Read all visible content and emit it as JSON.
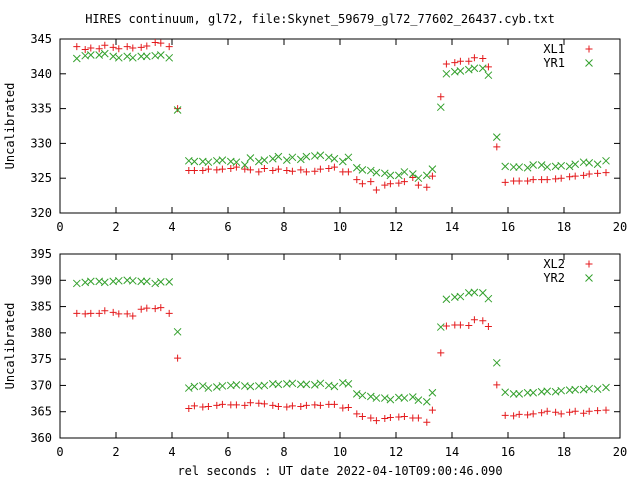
{
  "page_title": "HIRES continuum, gl72, file:Skynet_59679_gl72_77602_26437.cyb.txt",
  "footer_xlabel": "rel seconds : UT date 2022-04-10T09:00:46.090",
  "colors": {
    "red": "#e41a1c",
    "green": "#33a02c",
    "axis": "#000000"
  },
  "chart_data": [
    {
      "type": "scatter",
      "ylabel": "Uncalibrated",
      "xlim": [
        0,
        20
      ],
      "ylim": [
        320,
        345
      ],
      "xticks": [
        0,
        2,
        4,
        6,
        8,
        10,
        12,
        14,
        16,
        18,
        20
      ],
      "yticks": [
        320,
        325,
        330,
        335,
        340,
        345
      ],
      "legend_placement": "top-right",
      "series": [
        {
          "name": "XL1",
          "marker": "plus",
          "color": "#e41a1c",
          "x": [
            0.6,
            0.9,
            1.1,
            1.4,
            1.6,
            1.9,
            2.1,
            2.4,
            2.6,
            2.9,
            3.1,
            3.4,
            3.6,
            3.9,
            4.2,
            4.6,
            4.8,
            5.1,
            5.3,
            5.6,
            5.8,
            6.1,
            6.3,
            6.6,
            6.8,
            7.1,
            7.3,
            7.6,
            7.8,
            8.1,
            8.3,
            8.6,
            8.8,
            9.1,
            9.3,
            9.6,
            9.8,
            10.1,
            10.3,
            10.6,
            10.8,
            11.1,
            11.3,
            11.6,
            11.8,
            12.1,
            12.3,
            12.6,
            12.8,
            13.1,
            13.3,
            13.6,
            13.8,
            14.1,
            14.3,
            14.6,
            14.8,
            15.1,
            15.3,
            15.6,
            15.9,
            16.2,
            16.4,
            16.7,
            16.9,
            17.2,
            17.4,
            17.7,
            17.9,
            18.2,
            18.4,
            18.7,
            18.9,
            19.2,
            19.5
          ],
          "y": [
            343.9,
            343.5,
            343.7,
            343.6,
            344.1,
            343.8,
            343.6,
            343.9,
            343.7,
            343.8,
            344.0,
            344.5,
            344.4,
            343.9,
            335.0,
            326.1,
            326.1,
            326.1,
            326.3,
            326.2,
            326.3,
            326.4,
            326.6,
            326.3,
            326.2,
            325.9,
            326.4,
            326.1,
            326.3,
            326.1,
            326.0,
            326.2,
            325.9,
            326.0,
            326.3,
            326.4,
            326.6,
            325.9,
            325.9,
            324.8,
            324.2,
            324.5,
            323.3,
            324.0,
            324.2,
            324.3,
            324.5,
            325.1,
            324.0,
            323.7,
            325.3,
            336.7,
            341.4,
            341.6,
            341.8,
            341.8,
            342.3,
            342.2,
            341.0,
            329.5,
            324.4,
            324.6,
            324.6,
            324.6,
            324.8,
            324.8,
            324.8,
            324.9,
            325.0,
            325.2,
            325.3,
            325.4,
            325.6,
            325.7,
            325.8
          ]
        },
        {
          "name": "YR1",
          "marker": "cross",
          "color": "#33a02c",
          "x": [
            0.6,
            0.9,
            1.1,
            1.4,
            1.6,
            1.9,
            2.1,
            2.4,
            2.6,
            2.9,
            3.1,
            3.4,
            3.6,
            3.9,
            4.2,
            4.6,
            4.8,
            5.1,
            5.3,
            5.6,
            5.8,
            6.1,
            6.3,
            6.6,
            6.8,
            7.1,
            7.3,
            7.6,
            7.8,
            8.1,
            8.3,
            8.6,
            8.8,
            9.1,
            9.3,
            9.6,
            9.8,
            10.1,
            10.3,
            10.6,
            10.8,
            11.1,
            11.3,
            11.6,
            11.8,
            12.1,
            12.3,
            12.6,
            12.8,
            13.1,
            13.3,
            13.6,
            13.8,
            14.1,
            14.3,
            14.6,
            14.8,
            15.1,
            15.3,
            15.6,
            15.9,
            16.2,
            16.4,
            16.7,
            16.9,
            17.2,
            17.4,
            17.7,
            17.9,
            18.2,
            18.4,
            18.7,
            18.9,
            19.2,
            19.5
          ],
          "y": [
            342.2,
            342.6,
            342.7,
            342.7,
            342.9,
            342.5,
            342.3,
            342.5,
            342.3,
            342.5,
            342.5,
            342.6,
            342.7,
            342.3,
            334.8,
            327.5,
            327.4,
            327.4,
            327.3,
            327.5,
            327.6,
            327.4,
            327.3,
            326.9,
            327.9,
            327.4,
            327.6,
            327.8,
            328.1,
            327.6,
            328.0,
            327.7,
            328.1,
            328.2,
            328.3,
            328.0,
            327.8,
            327.4,
            328.0,
            326.5,
            326.2,
            326.1,
            325.8,
            325.7,
            325.4,
            325.4,
            325.9,
            325.6,
            325.0,
            325.4,
            326.3,
            335.2,
            340.0,
            340.3,
            340.4,
            340.6,
            340.8,
            340.8,
            339.8,
            330.9,
            326.7,
            326.6,
            326.6,
            326.5,
            326.9,
            326.9,
            326.6,
            326.7,
            326.8,
            326.7,
            327.0,
            327.3,
            327.2,
            327.0,
            327.5
          ]
        }
      ]
    },
    {
      "type": "scatter",
      "ylabel": "Uncalibrated",
      "xlabel": "rel seconds : UT date 2022-04-10T09:00:46.090",
      "xlim": [
        0,
        20
      ],
      "ylim": [
        360,
        395
      ],
      "xticks": [
        0,
        2,
        4,
        6,
        8,
        10,
        12,
        14,
        16,
        18,
        20
      ],
      "yticks": [
        360,
        365,
        370,
        375,
        380,
        385,
        390,
        395
      ],
      "legend_placement": "top-right",
      "series": [
        {
          "name": "XL2",
          "marker": "plus",
          "color": "#e41a1c",
          "x": [
            0.6,
            0.9,
            1.1,
            1.4,
            1.6,
            1.9,
            2.1,
            2.4,
            2.6,
            2.9,
            3.1,
            3.4,
            3.6,
            3.9,
            4.2,
            4.6,
            4.8,
            5.1,
            5.3,
            5.6,
            5.8,
            6.1,
            6.3,
            6.6,
            6.8,
            7.1,
            7.3,
            7.6,
            7.8,
            8.1,
            8.3,
            8.6,
            8.8,
            9.1,
            9.3,
            9.6,
            9.8,
            10.1,
            10.3,
            10.6,
            10.8,
            11.1,
            11.3,
            11.6,
            11.8,
            12.1,
            12.3,
            12.6,
            12.8,
            13.1,
            13.3,
            13.6,
            13.8,
            14.1,
            14.3,
            14.6,
            14.8,
            15.1,
            15.3,
            15.6,
            15.9,
            16.2,
            16.4,
            16.7,
            16.9,
            17.2,
            17.4,
            17.7,
            17.9,
            18.2,
            18.4,
            18.7,
            18.9,
            19.2,
            19.5
          ],
          "y": [
            383.7,
            383.6,
            383.7,
            383.7,
            384.2,
            383.9,
            383.6,
            383.6,
            383.2,
            384.5,
            384.7,
            384.6,
            384.8,
            383.7,
            375.2,
            365.6,
            366.1,
            365.9,
            366.0,
            366.2,
            366.4,
            366.3,
            366.3,
            366.2,
            366.7,
            366.6,
            366.5,
            366.2,
            366.0,
            365.9,
            366.1,
            366.0,
            366.2,
            366.3,
            366.2,
            366.4,
            366.4,
            365.7,
            365.8,
            364.6,
            364.1,
            363.8,
            363.3,
            363.7,
            363.9,
            364.0,
            364.1,
            363.8,
            363.8,
            363.0,
            365.3,
            376.2,
            381.3,
            381.5,
            381.5,
            381.4,
            382.5,
            382.3,
            381.2,
            370.1,
            364.3,
            364.2,
            364.5,
            364.4,
            364.6,
            364.8,
            365.1,
            364.9,
            364.6,
            364.9,
            365.1,
            364.7,
            365.1,
            365.2,
            365.3
          ]
        },
        {
          "name": "YR2",
          "marker": "cross",
          "color": "#33a02c",
          "x": [
            0.6,
            0.9,
            1.1,
            1.4,
            1.6,
            1.9,
            2.1,
            2.4,
            2.6,
            2.9,
            3.1,
            3.4,
            3.6,
            3.9,
            4.2,
            4.6,
            4.8,
            5.1,
            5.3,
            5.6,
            5.8,
            6.1,
            6.3,
            6.6,
            6.8,
            7.1,
            7.3,
            7.6,
            7.8,
            8.1,
            8.3,
            8.6,
            8.8,
            9.1,
            9.3,
            9.6,
            9.8,
            10.1,
            10.3,
            10.6,
            10.8,
            11.1,
            11.3,
            11.6,
            11.8,
            12.1,
            12.3,
            12.6,
            12.8,
            13.1,
            13.3,
            13.6,
            13.8,
            14.1,
            14.3,
            14.6,
            14.8,
            15.1,
            15.3,
            15.6,
            15.9,
            16.2,
            16.4,
            16.7,
            16.9,
            17.2,
            17.4,
            17.7,
            17.9,
            18.2,
            18.4,
            18.7,
            18.9,
            19.2,
            19.5
          ],
          "y": [
            389.4,
            389.6,
            389.8,
            389.8,
            389.6,
            389.8,
            389.9,
            390.0,
            389.9,
            389.8,
            389.8,
            389.4,
            389.7,
            389.7,
            380.2,
            369.5,
            369.8,
            369.9,
            369.5,
            369.7,
            369.9,
            370.0,
            370.1,
            369.9,
            369.8,
            369.9,
            370.0,
            370.3,
            370.2,
            370.3,
            370.4,
            370.2,
            370.2,
            370.1,
            370.4,
            370.0,
            369.8,
            370.5,
            370.3,
            368.4,
            368.1,
            367.9,
            367.6,
            367.6,
            367.3,
            367.7,
            367.6,
            367.8,
            367.2,
            366.9,
            368.6,
            381.1,
            386.4,
            386.8,
            386.9,
            387.6,
            387.7,
            387.6,
            386.5,
            374.3,
            368.7,
            368.4,
            368.4,
            368.6,
            368.6,
            368.8,
            368.9,
            368.8,
            369.0,
            369.1,
            369.2,
            369.2,
            369.4,
            369.3,
            369.6
          ]
        }
      ]
    }
  ]
}
